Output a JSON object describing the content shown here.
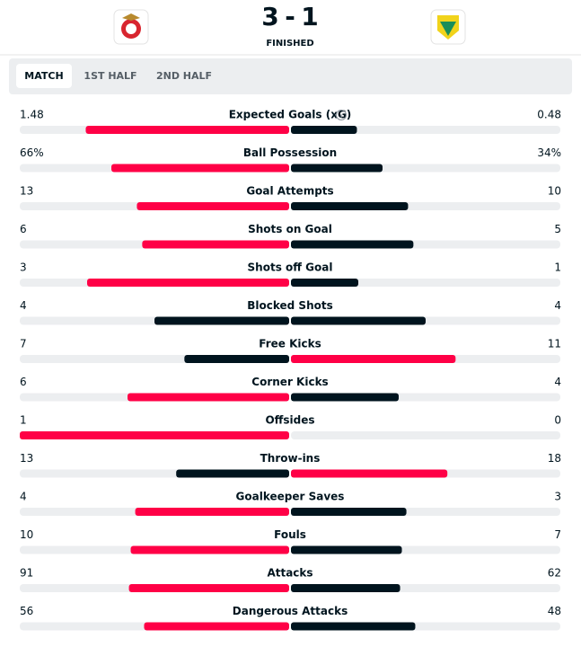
{
  "header": {
    "home_score": "3",
    "separator": "-",
    "away_score": "1",
    "status": "FINISHED"
  },
  "tabs": [
    "MATCH",
    "1ST HALF",
    "2ND HALF"
  ],
  "colors": {
    "leader": "#ff0046",
    "other": "#00141e",
    "track": "#eceef0"
  },
  "stats": [
    {
      "name": "Expected Goals (xG)",
      "home": 1.48,
      "away": 0.48
    },
    {
      "name": "Ball Possession",
      "home": 66,
      "away": 34,
      "home_label": "66%",
      "away_label": "34%"
    },
    {
      "name": "Goal Attempts",
      "home": 13,
      "away": 10
    },
    {
      "name": "Shots on Goal",
      "home": 6,
      "away": 5
    },
    {
      "name": "Shots off Goal",
      "home": 3,
      "away": 1
    },
    {
      "name": "Blocked Shots",
      "home": 4,
      "away": 4
    },
    {
      "name": "Free Kicks",
      "home": 7,
      "away": 11
    },
    {
      "name": "Corner Kicks",
      "home": 6,
      "away": 4
    },
    {
      "name": "Offsides",
      "home": 1,
      "away": 0
    },
    {
      "name": "Throw-ins",
      "home": 13,
      "away": 18
    },
    {
      "name": "Goalkeeper Saves",
      "home": 4,
      "away": 3
    },
    {
      "name": "Fouls",
      "home": 10,
      "away": 7
    },
    {
      "name": "Attacks",
      "home": 91,
      "away": 62
    },
    {
      "name": "Dangerous Attacks",
      "home": 56,
      "away": 48
    }
  ]
}
